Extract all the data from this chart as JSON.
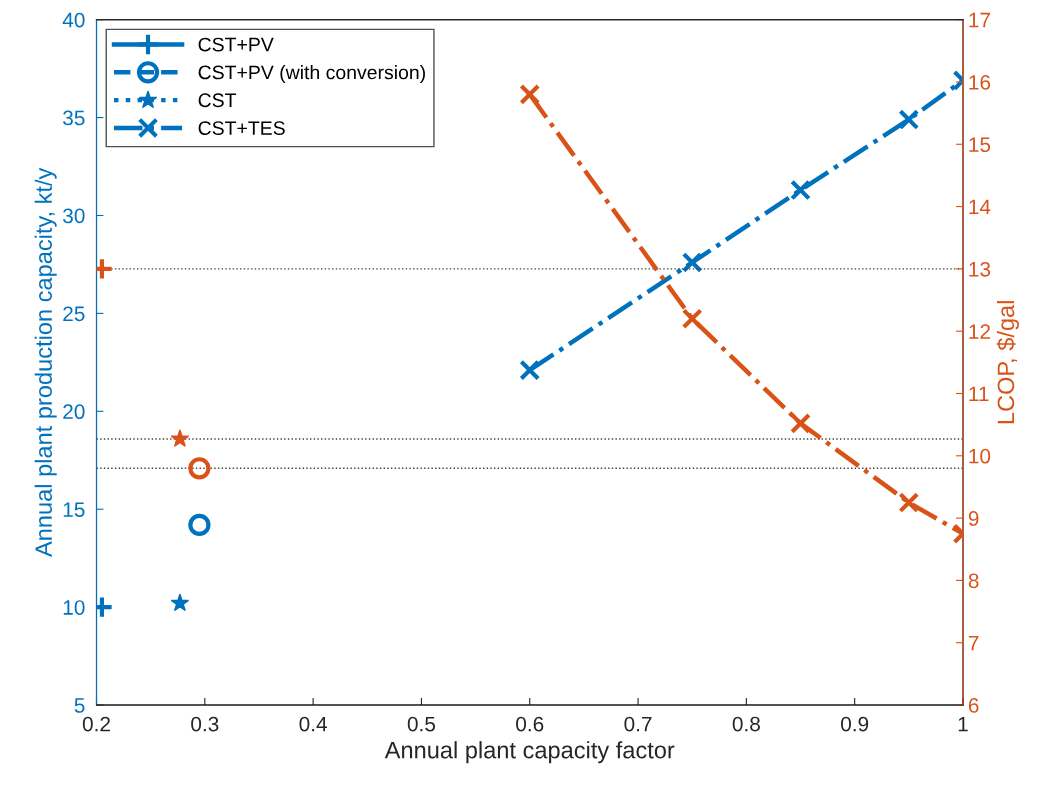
{
  "chart_data": {
    "type": "line",
    "xlabel": "Annual plant capacity factor",
    "ylabel": "Annual plant production capacity, kt/y",
    "y2label": "LCOP, $/gal",
    "xlim": [
      0.2,
      1
    ],
    "xticks": [
      0.2,
      0.3,
      0.4,
      0.5,
      0.6,
      0.7,
      0.8,
      0.9,
      1
    ],
    "ylim": [
      5,
      40
    ],
    "yticks": [
      5,
      10,
      15,
      20,
      25,
      30,
      35,
      40
    ],
    "y2lim": [
      6,
      17
    ],
    "y2ticks": [
      6,
      7,
      8,
      9,
      10,
      11,
      12,
      13,
      14,
      15,
      16,
      17
    ],
    "grid": false,
    "legend": "top left",
    "series": [
      {
        "name": "CST+PV",
        "color": "#0072bd",
        "x": [
          0.205
        ],
        "values": [
          10.0
        ],
        "marker": "cross",
        "line_style": "solid"
      },
      {
        "name": "CST+PV (with conversion)",
        "color": "#0072bd",
        "x": [
          0.295
        ],
        "values": [
          14.2
        ],
        "marker": "circle",
        "line_style": "dashed"
      },
      {
        "name": "CST",
        "color": "#0072bd",
        "x": [
          0.277
        ],
        "values": [
          10.2
        ],
        "marker": "star",
        "line_style": "dotted"
      },
      {
        "name": "CST+TES",
        "color": "#0072bd",
        "x": [
          0.6,
          0.75,
          0.85,
          0.95,
          1.0
        ],
        "values": [
          22.1,
          27.6,
          31.3,
          34.9,
          36.9
        ],
        "marker": "x",
        "line_style": "dashdot"
      },
      {
        "color": "#d95319",
        "axis": "y2",
        "x": [
          0.205
        ],
        "values": [
          13.0
        ],
        "marker": "cross",
        "line_style": "solid"
      },
      {
        "color": "#d95319",
        "axis": "y2",
        "x": [
          0.295
        ],
        "values": [
          9.8
        ],
        "marker": "circle",
        "line_style": "dashed"
      },
      {
        "color": "#d95319",
        "axis": "y2",
        "x": [
          0.277
        ],
        "values": [
          10.27
        ],
        "marker": "star",
        "line_style": "dotted"
      },
      {
        "color": "#d95319",
        "axis": "y2",
        "x": [
          0.6,
          0.75,
          0.85,
          0.95,
          1.0
        ],
        "values": [
          15.8,
          12.2,
          10.52,
          9.25,
          8.75
        ],
        "marker": "x",
        "line_style": "dashdot"
      }
    ],
    "ref_lines": [
      {
        "axis": "y2",
        "value": 13.0,
        "color": "#404040",
        "line_style": "dotted"
      },
      {
        "axis": "y2",
        "value": 10.27,
        "color": "#404040",
        "line_style": "dotted"
      },
      {
        "axis": "y2",
        "value": 9.8,
        "color": "#404040",
        "line_style": "dotted"
      }
    ]
  }
}
